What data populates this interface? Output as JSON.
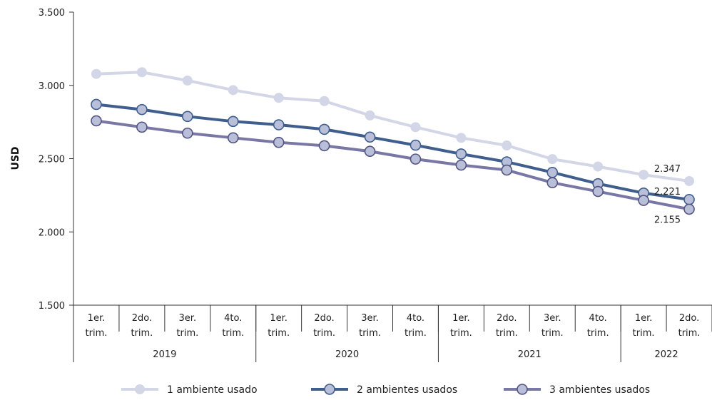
{
  "chart_data": {
    "type": "line",
    "ylabel": "USD",
    "ylim": [
      1500,
      3500
    ],
    "yticks": [
      "1.500",
      "2.000",
      "2.500",
      "3.000",
      "3.500"
    ],
    "quarters": [
      "1er.|trim.",
      "2do.|trim.",
      "3er.|trim.",
      "4to.|trim.",
      "1er.|trim.",
      "2do.|trim.",
      "3er.|trim.",
      "4to.|trim.",
      "1er.|trim.",
      "2do.|trim.",
      "3er.|trim.",
      "4to.|trim.",
      "1er.|trim.",
      "2do.|trim."
    ],
    "years": [
      {
        "label": "2019",
        "start": 0,
        "end": 3
      },
      {
        "label": "2020",
        "start": 4,
        "end": 7
      },
      {
        "label": "2021",
        "start": 8,
        "end": 11
      },
      {
        "label": "2022",
        "start": 12,
        "end": 13
      }
    ],
    "series": [
      {
        "name": "1 ambiente usado",
        "color": "#d3d6e6",
        "marker": "#d3d6e6",
        "markerStroke": "#d3d6e6",
        "values": [
          3078,
          3090,
          3033,
          2968,
          2915,
          2893,
          2795,
          2715,
          2642,
          2590,
          2497,
          2446,
          2390,
          2347
        ],
        "last_label": "2.347"
      },
      {
        "name": "2 ambientes usados",
        "color": "#3f5e8e",
        "marker": "#b9bfd8",
        "markerStroke": "#3f5e8e",
        "values": [
          2870,
          2835,
          2788,
          2754,
          2731,
          2700,
          2647,
          2592,
          2532,
          2478,
          2406,
          2329,
          2265,
          2221
        ],
        "last_label": "2.221"
      },
      {
        "name": "3 ambientes usados",
        "color": "#7877a5",
        "marker": "#b9bfd8",
        "markerStroke": "#555480",
        "values": [
          2758,
          2715,
          2674,
          2642,
          2611,
          2588,
          2550,
          2497,
          2456,
          2422,
          2336,
          2276,
          2215,
          2155
        ],
        "last_label": "2.155"
      }
    ]
  }
}
